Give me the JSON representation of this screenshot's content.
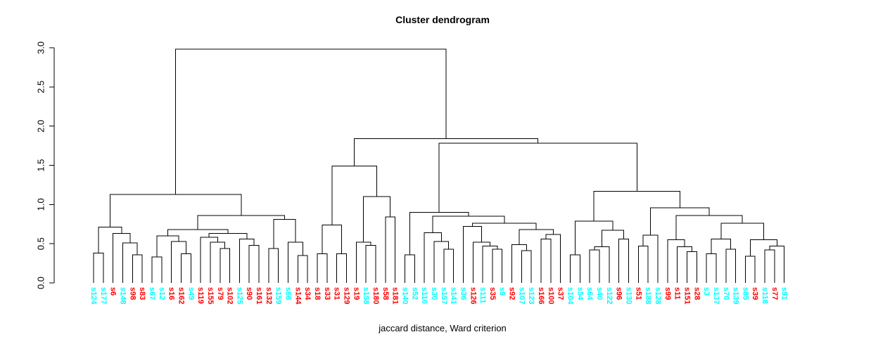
{
  "chart_data": {
    "type": "dendrogram",
    "title": "Cluster dendrogram",
    "xlabel": "jaccard distance, Ward criterion",
    "ylabel": "",
    "ylim": [
      0,
      3
    ],
    "y_ticks": [
      0,
      0.5,
      1,
      1.5,
      2,
      2.5,
      3
    ],
    "y_tick_labels": [
      "0.0",
      "0.5",
      "1.0",
      "1.5",
      "2.0",
      "2.5",
      "3.0"
    ],
    "grid": false,
    "line_color": "#000000",
    "colors": {
      "cyan": "#00ffff",
      "red": "#ff0000"
    },
    "leaves": [
      [
        "s124",
        "cyan"
      ],
      [
        "s177",
        "cyan"
      ],
      [
        "s6",
        "red"
      ],
      [
        "s148",
        "cyan"
      ],
      [
        "s98",
        "red"
      ],
      [
        "s83",
        "red"
      ],
      [
        "s67",
        "cyan"
      ],
      [
        "s12",
        "cyan"
      ],
      [
        "s16",
        "red"
      ],
      [
        "s162",
        "red"
      ],
      [
        "s49",
        "cyan"
      ],
      [
        "s119",
        "red"
      ],
      [
        "s155",
        "red"
      ],
      [
        "s79",
        "red"
      ],
      [
        "s102",
        "red"
      ],
      [
        "s125",
        "cyan"
      ],
      [
        "s90",
        "red"
      ],
      [
        "s161",
        "red"
      ],
      [
        "s132",
        "red"
      ],
      [
        "s159",
        "cyan"
      ],
      [
        "s66",
        "cyan"
      ],
      [
        "s144",
        "red"
      ],
      [
        "s34",
        "red"
      ],
      [
        "s18",
        "red"
      ],
      [
        "s33",
        "red"
      ],
      [
        "s31",
        "red"
      ],
      [
        "s129",
        "red"
      ],
      [
        "s19",
        "red"
      ],
      [
        "s158",
        "cyan"
      ],
      [
        "s180",
        "red"
      ],
      [
        "s58",
        "red"
      ],
      [
        "s181",
        "red"
      ],
      [
        "s140",
        "cyan"
      ],
      [
        "s52",
        "cyan"
      ],
      [
        "s110",
        "cyan"
      ],
      [
        "s30",
        "cyan"
      ],
      [
        "s157",
        "cyan"
      ],
      [
        "s141",
        "cyan"
      ],
      [
        "s36",
        "cyan"
      ],
      [
        "s126",
        "red"
      ],
      [
        "s111",
        "cyan"
      ],
      [
        "s35",
        "red"
      ],
      [
        "s9",
        "cyan"
      ],
      [
        "s92",
        "red"
      ],
      [
        "s107",
        "cyan"
      ],
      [
        "s123",
        "cyan"
      ],
      [
        "s166",
        "red"
      ],
      [
        "s100",
        "red"
      ],
      [
        "s37",
        "red"
      ],
      [
        "s104",
        "cyan"
      ],
      [
        "s54",
        "cyan"
      ],
      [
        "s64",
        "cyan"
      ],
      [
        "s40",
        "cyan"
      ],
      [
        "s122",
        "cyan"
      ],
      [
        "s96",
        "red"
      ],
      [
        "s130",
        "cyan"
      ],
      [
        "s51",
        "red"
      ],
      [
        "s188",
        "cyan"
      ],
      [
        "s128",
        "cyan"
      ],
      [
        "s99",
        "red"
      ],
      [
        "s11",
        "red"
      ],
      [
        "s151",
        "red"
      ],
      [
        "s28",
        "red"
      ],
      [
        "s3",
        "cyan"
      ],
      [
        "s137",
        "cyan"
      ],
      [
        "s70",
        "cyan"
      ],
      [
        "s139",
        "cyan"
      ],
      [
        "s85",
        "cyan"
      ],
      [
        "s39",
        "red"
      ],
      [
        "s118",
        "cyan"
      ],
      [
        "s77",
        "red"
      ],
      [
        "s91",
        "cyan"
      ]
    ],
    "tree": {
      "h": 2.98,
      "c": [
        {
          "h": 1.13,
          "c": [
            {
              "h": 0.71,
              "c": [
                {
                  "h": 0.38,
                  "c": [
                    0,
                    1
                  ]
                },
                {
                  "h": 0.63,
                  "c": [
                    2,
                    {
                      "h": 0.51,
                      "c": [
                        3,
                        {
                          "h": 0.36,
                          "c": [
                            4,
                            5
                          ]
                        }
                      ]
                    }
                  ]
                }
              ]
            },
            {
              "h": 0.86,
              "c": [
                {
                  "h": 0.68,
                  "c": [
                    {
                      "h": 0.6,
                      "c": [
                        {
                          "h": 0.33,
                          "c": [
                            6,
                            7
                          ]
                        },
                        {
                          "h": 0.53,
                          "c": [
                            8,
                            {
                              "h": 0.37,
                              "c": [
                                9,
                                10
                              ]
                            }
                          ]
                        }
                      ]
                    },
                    {
                      "h": 0.63,
                      "c": [
                        {
                          "h": 0.58,
                          "c": [
                            11,
                            {
                              "h": 0.52,
                              "c": [
                                12,
                                {
                                  "h": 0.44,
                                  "c": [
                                    13,
                                    14
                                  ]
                                }
                              ]
                            }
                          ]
                        },
                        {
                          "h": 0.56,
                          "c": [
                            15,
                            {
                              "h": 0.48,
                              "c": [
                                16,
                                17
                              ]
                            }
                          ]
                        }
                      ]
                    }
                  ]
                },
                {
                  "h": 0.81,
                  "c": [
                    {
                      "h": 0.44,
                      "c": [
                        18,
                        19
                      ]
                    },
                    {
                      "h": 0.52,
                      "c": [
                        20,
                        {
                          "h": 0.35,
                          "c": [
                            21,
                            22
                          ]
                        }
                      ]
                    }
                  ]
                }
              ]
            }
          ]
        },
        {
          "h": 1.84,
          "c": [
            {
              "h": 1.49,
              "c": [
                {
                  "h": 0.74,
                  "c": [
                    {
                      "h": 0.37,
                      "c": [
                        23,
                        24
                      ]
                    },
                    {
                      "h": 0.37,
                      "c": [
                        25,
                        26
                      ]
                    }
                  ]
                },
                {
                  "h": 1.1,
                  "c": [
                    {
                      "h": 0.52,
                      "c": [
                        27,
                        {
                          "h": 0.48,
                          "c": [
                            28,
                            29
                          ]
                        }
                      ]
                    },
                    {
                      "h": 0.84,
                      "c": [
                        30,
                        31
                      ]
                    }
                  ]
                }
              ]
            },
            {
              "h": 1.78,
              "c": [
                {
                  "h": 0.9,
                  "c": [
                    {
                      "h": 0.36,
                      "c": [
                        32,
                        33
                      ]
                    },
                    {
                      "h": 0.85,
                      "c": [
                        {
                          "h": 0.64,
                          "c": [
                            34,
                            {
                              "h": 0.53,
                              "c": [
                                35,
                                {
                                  "h": 0.43,
                                  "c": [
                                    36,
                                    37
                                  ]
                                }
                              ]
                            }
                          ]
                        },
                        {
                          "h": 0.76,
                          "c": [
                            {
                              "h": 0.72,
                              "c": [
                                38,
                                {
                                  "h": 0.52,
                                  "c": [
                                    39,
                                    {
                                      "h": 0.47,
                                      "c": [
                                        40,
                                        {
                                          "h": 0.43,
                                          "c": [
                                            41,
                                            42
                                          ]
                                        }
                                      ]
                                    }
                                  ]
                                }
                              ]
                            },
                            {
                              "h": 0.68,
                              "c": [
                                {
                                  "h": 0.49,
                                  "c": [
                                    43,
                                    {
                                      "h": 0.41,
                                      "c": [
                                        44,
                                        45
                                      ]
                                    }
                                  ]
                                },
                                {
                                  "h": 0.62,
                                  "c": [
                                    {
                                      "h": 0.56,
                                      "c": [
                                        46,
                                        47
                                      ]
                                    },
                                    48
                                  ]
                                }
                              ]
                            }
                          ]
                        }
                      ]
                    }
                  ]
                },
                {
                  "h": 1.17,
                  "c": [
                    {
                      "h": 0.79,
                      "c": [
                        {
                          "h": 0.36,
                          "c": [
                            49,
                            50
                          ]
                        },
                        {
                          "h": 0.67,
                          "c": [
                            {
                              "h": 0.46,
                              "c": [
                                {
                                  "h": 0.42,
                                  "c": [
                                    51,
                                    52
                                  ]
                                },
                                53
                              ]
                            },
                            {
                              "h": 0.56,
                              "c": [
                                54,
                                55
                              ]
                            }
                          ]
                        }
                      ]
                    },
                    {
                      "h": 0.96,
                      "c": [
                        {
                          "h": 0.61,
                          "c": [
                            {
                              "h": 0.47,
                              "c": [
                                56,
                                57
                              ]
                            },
                            58
                          ]
                        },
                        {
                          "h": 0.86,
                          "c": [
                            {
                              "h": 0.55,
                              "c": [
                                59,
                                {
                                  "h": 0.46,
                                  "c": [
                                    60,
                                    {
                                      "h": 0.4,
                                      "c": [
                                        61,
                                        62
                                      ]
                                    }
                                  ]
                                }
                              ]
                            },
                            {
                              "h": 0.76,
                              "c": [
                                {
                                  "h": 0.56,
                                  "c": [
                                    {
                                      "h": 0.37,
                                      "c": [
                                        63,
                                        64
                                      ]
                                    },
                                    {
                                      "h": 0.43,
                                      "c": [
                                        65,
                                        66
                                      ]
                                    }
                                  ]
                                },
                                {
                                  "h": 0.55,
                                  "c": [
                                    {
                                      "h": 0.34,
                                      "c": [
                                        67,
                                        68
                                      ]
                                    },
                                    {
                                      "h": 0.47,
                                      "c": [
                                        {
                                          "h": 0.42,
                                          "c": [
                                            69,
                                            70
                                          ]
                                        },
                                        71
                                      ]
                                    }
                                  ]
                                }
                              ]
                            }
                          ]
                        }
                      ]
                    }
                  ]
                }
              ]
            }
          ]
        }
      ]
    }
  }
}
